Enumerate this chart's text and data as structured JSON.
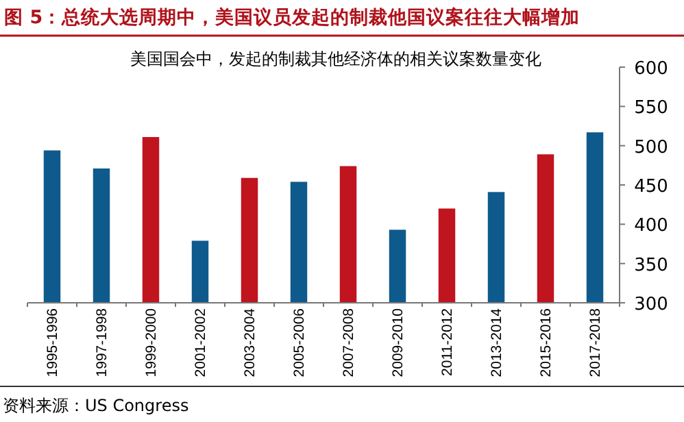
{
  "chart_data": {
    "type": "bar",
    "title": "图 5：总统大选周期中，美国议员发起的制裁他国议案往往大幅增加",
    "subtitle": "美国国会中，发起的制裁其他经济体的相关议案数量变化",
    "categories": [
      "1995-1996",
      "1997-1998",
      "1999-2000",
      "2001-2002",
      "2003-2004",
      "2005-2006",
      "2007-2008",
      "2009-2010",
      "2011-2012",
      "2013-2014",
      "2015-2016",
      "2017-2018"
    ],
    "values": [
      494,
      471,
      511,
      379,
      459,
      454,
      474,
      393,
      420,
      441,
      489,
      517
    ],
    "colors": [
      "#0f5a8c",
      "#0f5a8c",
      "#c0141e",
      "#0f5a8c",
      "#c0141e",
      "#0f5a8c",
      "#c0141e",
      "#0f5a8c",
      "#c0141e",
      "#0f5a8c",
      "#c0141e",
      "#0f5a8c"
    ],
    "ylim": [
      300,
      600
    ],
    "yticks": [
      300,
      350,
      400,
      450,
      500,
      550,
      600
    ],
    "annotations": [
      "资料来源：US Congress"
    ]
  }
}
